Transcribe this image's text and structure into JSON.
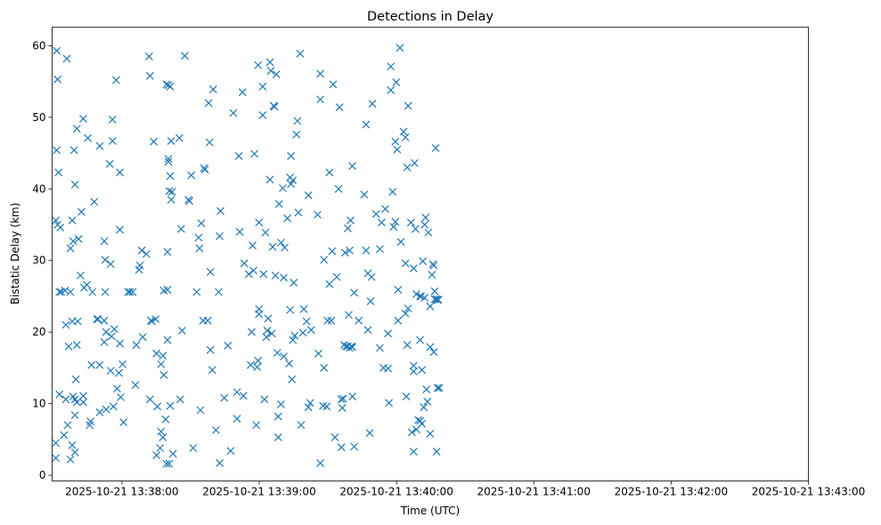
{
  "chart_data": {
    "type": "scatter",
    "title": "Detections in Delay",
    "xlabel": "Time (UTC)",
    "ylabel": "Bistatic Delay (km)",
    "marker": "x",
    "color": "#1f77b4",
    "x_unit": "seconds after 2025-10-21 13:37:00 UTC",
    "xlim": [
      29.5,
      360
    ],
    "ylim": [
      -0.8,
      62.6
    ],
    "x_ticks": [
      {
        "value": 60,
        "label": "2025-10-21 13:38:00"
      },
      {
        "value": 120,
        "label": "2025-10-21 13:39:00"
      },
      {
        "value": 180,
        "label": "2025-10-21 13:40:00"
      },
      {
        "value": 240,
        "label": "2025-10-21 13:41:00"
      },
      {
        "value": 300,
        "label": "2025-10-21 13:42:00"
      },
      {
        "value": 360,
        "label": "2025-10-21 13:43:00"
      }
    ],
    "y_ticks": [
      {
        "value": 0,
        "label": "0"
      },
      {
        "value": 10,
        "label": "10"
      },
      {
        "value": 20,
        "label": "20"
      },
      {
        "value": 30,
        "label": "30"
      },
      {
        "value": 40,
        "label": "40"
      },
      {
        "value": 50,
        "label": "50"
      },
      {
        "value": 60,
        "label": "60"
      }
    ],
    "points": [
      [
        31.5,
        59.3
      ],
      [
        31.5,
        45.4
      ],
      [
        32.3,
        42.3
      ],
      [
        31.9,
        55.3
      ],
      [
        31.1,
        35.6
      ],
      [
        31.9,
        35.0
      ],
      [
        33.1,
        34.6
      ],
      [
        32.7,
        25.6
      ],
      [
        33.5,
        25.6
      ],
      [
        35.1,
        25.8
      ],
      [
        32.7,
        11.3
      ],
      [
        31.1,
        4.5
      ],
      [
        31.1,
        2.4
      ],
      [
        34.7,
        5.6
      ],
      [
        35.5,
        10.6
      ],
      [
        35.9,
        58.2
      ],
      [
        35.5,
        21.0
      ],
      [
        36.3,
        7.0
      ],
      [
        36.7,
        18.0
      ],
      [
        37.5,
        2.2
      ],
      [
        38.3,
        4.2
      ],
      [
        37.5,
        31.7
      ],
      [
        38.7,
        32.7
      ],
      [
        38.3,
        35.6
      ],
      [
        39.1,
        45.4
      ],
      [
        38.3,
        21.5
      ],
      [
        37.5,
        25.6
      ],
      [
        39.5,
        40.6
      ],
      [
        40.3,
        48.4
      ],
      [
        41.1,
        33.0
      ],
      [
        38.7,
        11.0
      ],
      [
        39.5,
        10.6
      ],
      [
        40.3,
        10.2
      ],
      [
        39.5,
        8.4
      ],
      [
        39.9,
        13.4
      ],
      [
        39.5,
        3.2
      ],
      [
        40.3,
        18.2
      ],
      [
        40.7,
        21.5
      ],
      [
        42.3,
        36.8
      ],
      [
        43.1,
        49.8
      ],
      [
        41.9,
        27.9
      ],
      [
        43.5,
        26.2
      ],
      [
        44.7,
        26.6
      ],
      [
        45.1,
        47.1
      ],
      [
        43.1,
        11.1
      ],
      [
        43.1,
        10.2
      ],
      [
        45.9,
        7.0
      ],
      [
        46.3,
        7.5
      ],
      [
        46.7,
        15.4
      ],
      [
        47.1,
        25.6
      ],
      [
        47.9,
        38.2
      ],
      [
        49.1,
        21.8
      ],
      [
        49.5,
        21.8
      ],
      [
        50.3,
        46.0
      ],
      [
        50.3,
        15.4
      ],
      [
        50.3,
        8.8
      ],
      [
        52.3,
        21.6
      ],
      [
        52.3,
        32.7
      ],
      [
        52.7,
        25.6
      ],
      [
        52.3,
        18.6
      ],
      [
        53.1,
        20.0
      ],
      [
        52.7,
        30.1
      ],
      [
        53.1,
        9.2
      ],
      [
        54.7,
        43.5
      ],
      [
        55.1,
        29.5
      ],
      [
        55.9,
        49.7
      ],
      [
        55.5,
        19.4
      ],
      [
        55.9,
        46.7
      ],
      [
        55.1,
        14.6
      ],
      [
        56.7,
        20.4
      ],
      [
        56.3,
        9.6
      ],
      [
        57.5,
        55.2
      ],
      [
        57.9,
        12.1
      ],
      [
        58.7,
        14.3
      ],
      [
        59.1,
        18.4
      ],
      [
        59.5,
        10.9
      ],
      [
        59.1,
        42.3
      ],
      [
        59.1,
        34.3
      ],
      [
        60.3,
        15.5
      ],
      [
        60.7,
        7.4
      ],
      [
        62.7,
        25.6
      ],
      [
        63.5,
        25.6
      ],
      [
        64.7,
        25.6
      ],
      [
        65.9,
        12.6
      ],
      [
        66.3,
        18.2
      ],
      [
        67.5,
        28.7
      ],
      [
        67.9,
        29.3
      ],
      [
        68.7,
        31.4
      ],
      [
        69.1,
        19.3
      ],
      [
        70.7,
        30.9
      ],
      [
        71.9,
        58.5
      ],
      [
        72.3,
        55.8
      ],
      [
        72.3,
        10.6
      ],
      [
        72.7,
        21.6
      ],
      [
        73.1,
        21.5
      ],
      [
        73.9,
        46.6
      ],
      [
        74.7,
        21.8
      ],
      [
        75.1,
        17.0
      ],
      [
        75.5,
        9.6
      ],
      [
        75.1,
        2.8
      ],
      [
        76.7,
        3.8
      ],
      [
        77.1,
        6.1
      ],
      [
        77.1,
        15.5
      ],
      [
        77.9,
        5.3
      ],
      [
        77.9,
        16.7
      ],
      [
        78.3,
        14.0
      ],
      [
        78.3,
        25.8
      ],
      [
        79.5,
        1.6
      ],
      [
        79.1,
        7.8
      ],
      [
        79.9,
        25.9
      ],
      [
        79.9,
        18.9
      ],
      [
        79.9,
        31.2
      ],
      [
        79.5,
        54.6
      ],
      [
        80.3,
        54.5
      ],
      [
        81.1,
        54.3
      ],
      [
        80.3,
        43.8
      ],
      [
        80.3,
        44.2
      ],
      [
        80.7,
        1.6
      ],
      [
        81.1,
        9.7
      ],
      [
        80.7,
        39.7
      ],
      [
        81.1,
        41.8
      ],
      [
        81.5,
        46.7
      ],
      [
        82.3,
        3.0
      ],
      [
        81.9,
        39.6
      ],
      [
        81.5,
        38.5
      ],
      [
        85.1,
        47.1
      ],
      [
        85.5,
        10.6
      ],
      [
        85.9,
        34.4
      ],
      [
        86.3,
        20.2
      ],
      [
        87.5,
        58.6
      ],
      [
        89.1,
        38.5
      ],
      [
        89.5,
        38.3
      ],
      [
        90.3,
        41.9
      ],
      [
        91.1,
        3.8
      ],
      [
        92.7,
        25.6
      ],
      [
        93.5,
        33.2
      ],
      [
        93.9,
        31.7
      ],
      [
        94.7,
        35.2
      ],
      [
        94.3,
        9.1
      ],
      [
        95.9,
        42.9
      ],
      [
        96.3,
        42.7
      ],
      [
        95.5,
        21.6
      ],
      [
        97.5,
        21.6
      ],
      [
        97.9,
        52.0
      ],
      [
        98.3,
        46.5
      ],
      [
        98.7,
        28.4
      ],
      [
        98.7,
        17.5
      ],
      [
        99.5,
        14.7
      ],
      [
        99.9,
        53.9
      ],
      [
        101.1,
        6.3
      ],
      [
        102.3,
        25.6
      ],
      [
        102.7,
        33.4
      ],
      [
        103.1,
        36.9
      ],
      [
        102.7,
        1.7
      ],
      [
        104.7,
        10.8
      ],
      [
        106.3,
        18.1
      ],
      [
        107.5,
        3.4
      ],
      [
        108.7,
        50.6
      ],
      [
        110.3,
        7.9
      ],
      [
        110.3,
        11.6
      ],
      [
        111.1,
        44.6
      ],
      [
        111.5,
        34.0
      ],
      [
        112.7,
        53.5
      ],
      [
        113.1,
        11.1
      ],
      [
        113.5,
        29.6
      ],
      [
        115.5,
        28.1
      ],
      [
        116.3,
        15.4
      ],
      [
        116.7,
        20.0
      ],
      [
        117.1,
        32.1
      ],
      [
        117.9,
        44.9
      ],
      [
        117.5,
        28.6
      ],
      [
        118.7,
        7.0
      ],
      [
        119.1,
        15.1
      ],
      [
        119.5,
        16.0
      ],
      [
        119.9,
        35.3
      ],
      [
        119.9,
        22.5
      ],
      [
        119.5,
        57.3
      ],
      [
        119.9,
        23.2
      ],
      [
        121.5,
        54.3
      ],
      [
        121.5,
        50.3
      ],
      [
        121.9,
        28.1
      ],
      [
        122.3,
        10.6
      ],
      [
        122.7,
        33.9
      ],
      [
        123.9,
        21.9
      ],
      [
        123.5,
        20.2
      ],
      [
        123.1,
        19.3
      ],
      [
        124.7,
        41.3
      ],
      [
        124.7,
        57.7
      ],
      [
        125.1,
        56.5
      ],
      [
        125.5,
        19.8
      ],
      [
        125.9,
        31.9
      ],
      [
        126.3,
        51.6
      ],
      [
        126.7,
        51.5
      ],
      [
        127.1,
        27.9
      ],
      [
        127.5,
        56.0
      ],
      [
        127.9,
        17.1
      ],
      [
        128.3,
        8.2
      ],
      [
        128.3,
        5.3
      ],
      [
        128.7,
        37.9
      ],
      [
        129.5,
        9.9
      ],
      [
        129.5,
        32.5
      ],
      [
        130.3,
        40.1
      ],
      [
        130.7,
        27.6
      ],
      [
        130.7,
        16.6
      ],
      [
        131.1,
        31.8
      ],
      [
        132.3,
        35.9
      ],
      [
        133.1,
        15.6
      ],
      [
        133.5,
        41.6
      ],
      [
        133.9,
        44.6
      ],
      [
        133.9,
        40.7
      ],
      [
        133.5,
        23.1
      ],
      [
        134.3,
        13.4
      ],
      [
        134.7,
        18.9
      ],
      [
        134.7,
        41.2
      ],
      [
        135.1,
        26.9
      ],
      [
        135.5,
        19.5
      ],
      [
        136.3,
        47.6
      ],
      [
        136.7,
        49.5
      ],
      [
        137.1,
        36.7
      ],
      [
        137.9,
        58.9
      ],
      [
        138.3,
        7.0
      ],
      [
        139.1,
        19.9
      ],
      [
        139.5,
        23.2
      ],
      [
        140.7,
        21.5
      ],
      [
        141.5,
        39.1
      ],
      [
        141.5,
        9.5
      ],
      [
        142.3,
        10.1
      ],
      [
        142.7,
        20.3
      ],
      [
        145.5,
        36.4
      ],
      [
        145.9,
        17.0
      ],
      [
        146.7,
        1.7
      ],
      [
        146.7,
        52.5
      ],
      [
        146.7,
        56.1
      ],
      [
        147.9,
        9.7
      ],
      [
        148.3,
        30.1
      ],
      [
        148.3,
        15.0
      ],
      [
        149.5,
        9.6
      ],
      [
        149.9,
        21.6
      ],
      [
        150.7,
        26.7
      ],
      [
        150.7,
        42.3
      ],
      [
        151.5,
        21.6
      ],
      [
        151.9,
        31.3
      ],
      [
        152.3,
        54.6
      ],
      [
        153.1,
        5.3
      ],
      [
        153.9,
        27.7
      ],
      [
        154.7,
        40.0
      ],
      [
        155.1,
        51.4
      ],
      [
        155.9,
        10.6
      ],
      [
        155.9,
        3.9
      ],
      [
        156.3,
        9.4
      ],
      [
        156.7,
        10.7
      ],
      [
        157.1,
        18.2
      ],
      [
        157.5,
        31.1
      ],
      [
        157.9,
        18.0
      ],
      [
        158.7,
        18.0
      ],
      [
        158.7,
        34.5
      ],
      [
        159.1,
        22.4
      ],
      [
        159.5,
        17.8
      ],
      [
        159.9,
        35.6
      ],
      [
        159.5,
        31.4
      ],
      [
        160.3,
        18.0
      ],
      [
        160.7,
        43.2
      ],
      [
        160.7,
        17.9
      ],
      [
        160.7,
        11.0
      ],
      [
        161.5,
        25.5
      ],
      [
        161.5,
        4.0
      ],
      [
        163.5,
        21.6
      ],
      [
        165.9,
        39.2
      ],
      [
        166.7,
        49.0
      ],
      [
        166.7,
        31.4
      ],
      [
        167.5,
        20.3
      ],
      [
        167.5,
        28.2
      ],
      [
        168.3,
        5.9
      ],
      [
        168.7,
        24.3
      ],
      [
        169.1,
        27.7
      ],
      [
        169.5,
        51.9
      ],
      [
        171.1,
        36.5
      ],
      [
        172.7,
        17.8
      ],
      [
        172.7,
        31.6
      ],
      [
        173.5,
        35.3
      ],
      [
        174.3,
        15.0
      ],
      [
        175.1,
        37.2
      ],
      [
        176.3,
        19.8
      ],
      [
        176.3,
        14.9
      ],
      [
        176.7,
        10.1
      ],
      [
        177.5,
        57.1
      ],
      [
        177.5,
        53.8
      ],
      [
        178.3,
        39.6
      ],
      [
        178.7,
        34.7
      ],
      [
        179.5,
        35.4
      ],
      [
        179.5,
        46.6
      ],
      [
        179.9,
        54.9
      ],
      [
        180.3,
        45.5
      ],
      [
        180.7,
        21.6
      ],
      [
        180.7,
        25.9
      ],
      [
        181.5,
        59.7
      ],
      [
        181.9,
        32.6
      ],
      [
        183.1,
        48.0
      ],
      [
        183.9,
        47.2
      ],
      [
        183.9,
        29.6
      ],
      [
        183.9,
        22.6
      ],
      [
        184.3,
        11.0
      ],
      [
        184.7,
        43.0
      ],
      [
        184.7,
        18.2
      ],
      [
        185.1,
        51.6
      ],
      [
        185.1,
        23.3
      ],
      [
        186.3,
        35.3
      ],
      [
        186.7,
        6.0
      ],
      [
        187.5,
        15.3
      ],
      [
        187.5,
        14.5
      ],
      [
        187.5,
        3.3
      ],
      [
        187.9,
        43.6
      ],
      [
        187.5,
        28.9
      ],
      [
        188.3,
        34.4
      ],
      [
        188.7,
        25.3
      ],
      [
        188.7,
        6.4
      ],
      [
        189.5,
        7.7
      ],
      [
        190.3,
        25.0
      ],
      [
        190.3,
        18.9
      ],
      [
        190.3,
        7.6
      ],
      [
        190.7,
        25.0
      ],
      [
        191.1,
        14.7
      ],
      [
        191.1,
        7.2
      ],
      [
        191.5,
        29.9
      ],
      [
        191.9,
        9.5
      ],
      [
        192.3,
        24.8
      ],
      [
        192.3,
        35.0
      ],
      [
        192.7,
        36.0
      ],
      [
        193.1,
        12.0
      ],
      [
        193.5,
        10.3
      ],
      [
        193.9,
        33.9
      ],
      [
        194.7,
        17.9
      ],
      [
        194.7,
        23.6
      ],
      [
        194.7,
        5.8
      ],
      [
        195.5,
        28.0
      ],
      [
        195.9,
        29.5
      ],
      [
        196.3,
        29.3
      ],
      [
        196.3,
        17.2
      ],
      [
        196.7,
        25.7
      ],
      [
        196.7,
        24.6
      ],
      [
        197.1,
        45.7
      ],
      [
        197.5,
        24.6
      ],
      [
        197.9,
        24.5
      ],
      [
        197.9,
        12.2
      ],
      [
        197.5,
        3.3
      ],
      [
        198.3,
        24.5
      ],
      [
        198.7,
        12.2
      ]
    ]
  }
}
